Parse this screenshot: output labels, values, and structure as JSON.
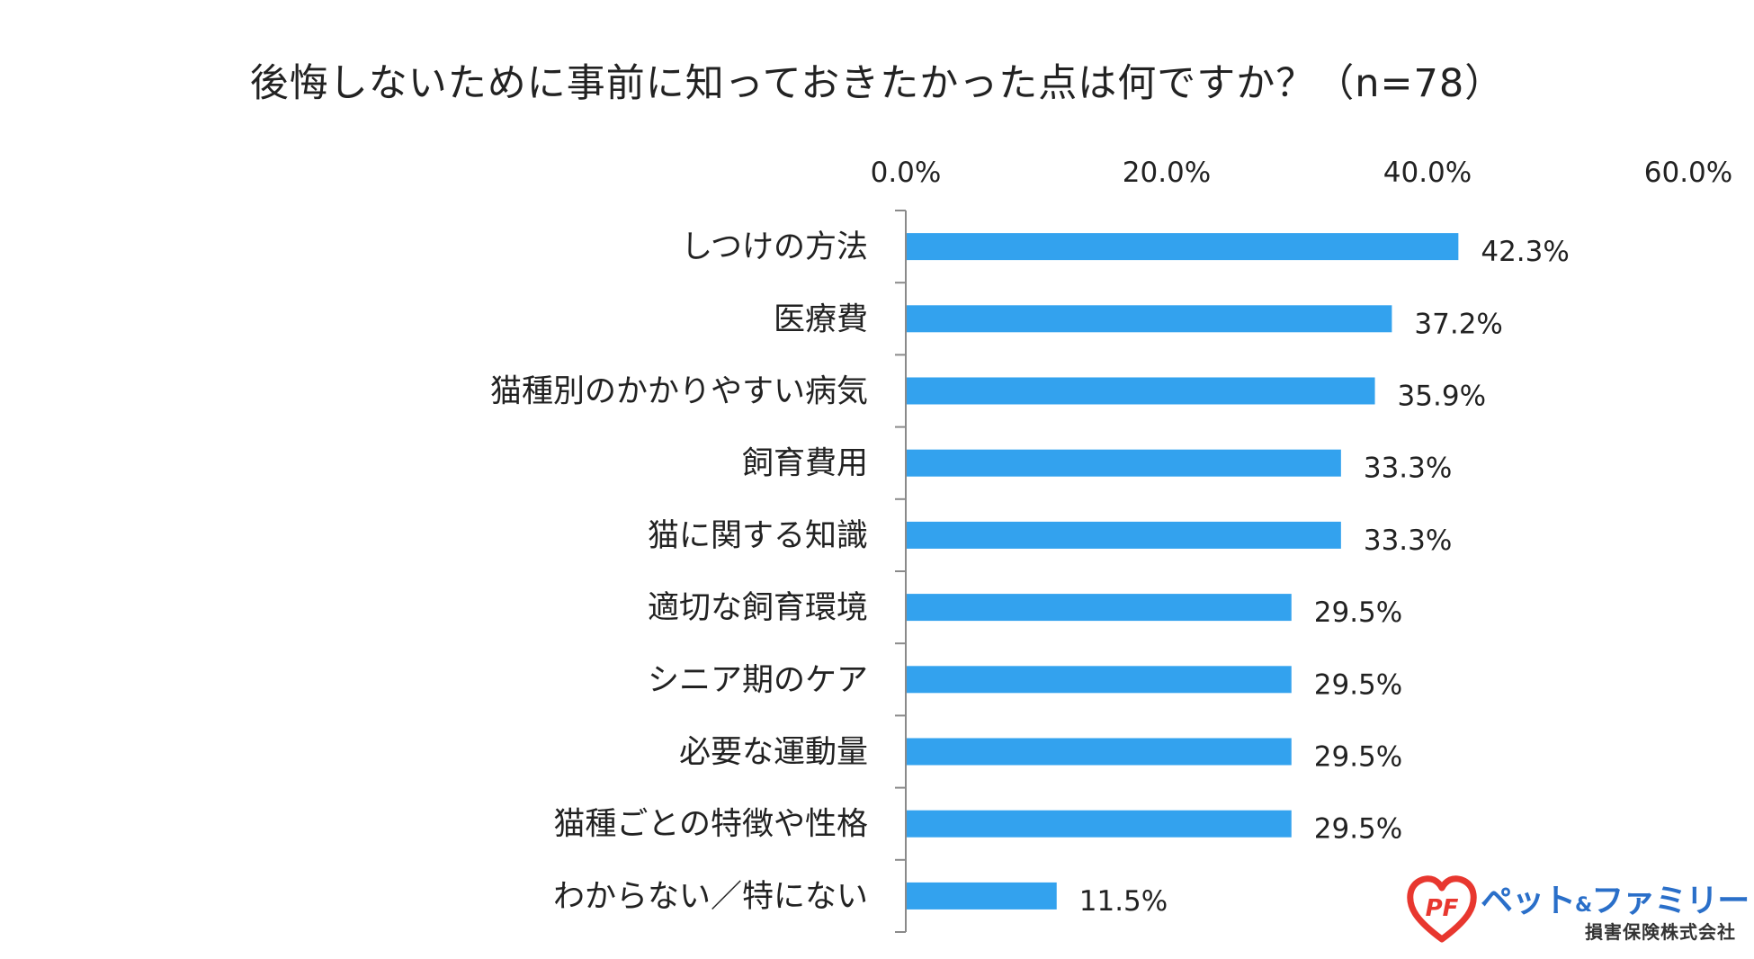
{
  "chart_data": {
    "type": "bar",
    "orientation": "horizontal",
    "title": "後悔しないために事前に知っておきたかった点は何ですか？（n=78）",
    "categories": [
      "しつけの方法",
      "医療費",
      "猫種別のかかりやすい病気",
      "飼育費用",
      "猫に関する知識",
      "適切な飼育環境",
      "シニア期のケア",
      "必要な運動量",
      "猫種ごとの特徴や性格",
      "わからない／特にない"
    ],
    "values": [
      42.3,
      37.2,
      35.9,
      33.3,
      33.3,
      29.5,
      29.5,
      29.5,
      29.5,
      11.5
    ],
    "value_labels": [
      "42.3%",
      "37.2%",
      "35.9%",
      "33.3%",
      "33.3%",
      "29.5%",
      "29.5%",
      "29.5%",
      "29.5%",
      "11.5%"
    ],
    "xlim": [
      0,
      60
    ],
    "x_ticks": [
      0,
      20,
      40,
      60
    ],
    "x_tick_labels": [
      "0.0%",
      "20.0%",
      "40.0%",
      "60.0%"
    ],
    "x_axis_position": "top",
    "grid": false,
    "legend": "none",
    "bar_color": "#33a2ee"
  },
  "logo": {
    "mark": "PF",
    "brand_name": "ペット&ファミリー",
    "brand_name_main": "ペット",
    "brand_name_amp": "&",
    "brand_name_rest": "ファミリー",
    "company": "損害保険株式会社",
    "colors": {
      "heart": "#e8372f",
      "brand": "#2a6fc9"
    }
  }
}
